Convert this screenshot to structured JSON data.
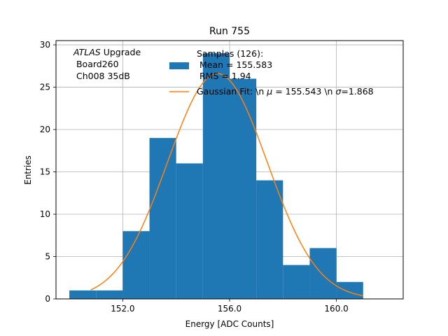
{
  "chart_data": {
    "type": "bar",
    "subtype": "histogram",
    "title": "Run 755",
    "xlabel": "Energy [ADC Counts]",
    "ylabel": "Entries",
    "xlim": [
      149.5,
      162.5
    ],
    "ylim": [
      0,
      30.5
    ],
    "xticks": [
      152.0,
      156.0,
      160.0
    ],
    "xtick_labels": [
      "152.0",
      "156.0",
      "160.0"
    ],
    "yticks": [
      0,
      5,
      10,
      15,
      20,
      25,
      30
    ],
    "ytick_labels": [
      "0",
      "5",
      "10",
      "15",
      "20",
      "25",
      "30"
    ],
    "grid": true,
    "bin_edges": [
      150,
      151,
      152,
      153,
      154,
      155,
      156,
      157,
      158,
      159,
      160,
      161
    ],
    "bin_counts": [
      1,
      1,
      8,
      19,
      16,
      29,
      26,
      14,
      4,
      6,
      2
    ],
    "histogram_color": "#1f77b4",
    "fit": {
      "type": "gaussian",
      "mean": 155.543,
      "sigma": 1.868,
      "x_range": [
        150.8,
        161.0
      ],
      "amplitude": 26.6,
      "color": "#ff7f0e"
    },
    "annotation": {
      "italic_part": "ATLAS",
      "first_line_rest": " Upgrade",
      "lines": [
        " Board260",
        " Ch008 35dB"
      ]
    },
    "legend": {
      "placement": "top",
      "samples_lines": [
        "Samples (126):",
        " Mean = 155.583",
        " RMS = 1.94"
      ],
      "fit_label_prefix": "Gaussian Fit: \\n ",
      "fit_label_mu_symbol": "μ",
      "fit_label_mid": " = 155.543 \\n ",
      "fit_label_sigma_symbol": "σ",
      "fit_label_suffix": "=1.868"
    }
  }
}
